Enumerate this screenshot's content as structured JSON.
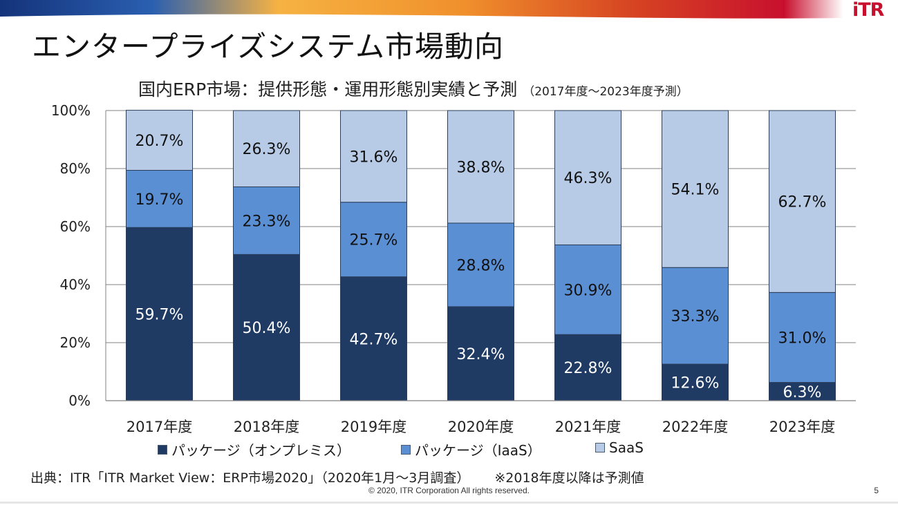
{
  "brand": {
    "logo_text": "iTR"
  },
  "slide": {
    "title": "エンタープライズシステム市場動向",
    "source": "出典：ITR「ITR Market View：ERP市場2020」（2020年1月～3月調査）",
    "note": "※2018年度以降は予測値",
    "copyright": "© 2020, ITR Corporation  All rights reserved.",
    "page_number": "5"
  },
  "colors": {
    "onpremise": "#1f3b64",
    "iaas": "#5b8fd4",
    "saas": "#b7cbe6",
    "banner_blue": "#1e4f9c",
    "banner_orange": "#f2a33a",
    "banner_red": "#c8102e"
  },
  "chart_data": {
    "type": "bar",
    "stacked": true,
    "title": "国内ERP市場：提供形態・運用形態別実績と予測",
    "subtitle": "（2017年度～2023年度予測）",
    "categories": [
      "2017年度",
      "2018年度",
      "2019年度",
      "2020年度",
      "2021年度",
      "2022年度",
      "2023年度"
    ],
    "series": [
      {
        "name": "パッケージ（オンプレミス）",
        "values": [
          59.7,
          50.4,
          42.7,
          32.4,
          22.8,
          12.6,
          6.3
        ],
        "labels": [
          "59.7%",
          "50.4%",
          "42.7%",
          "32.4%",
          "22.8%",
          "12.6%",
          "6.3%"
        ]
      },
      {
        "name": "パッケージ（IaaS）",
        "values": [
          19.7,
          23.3,
          25.7,
          28.8,
          30.9,
          33.3,
          31.0
        ],
        "labels": [
          "19.7%",
          "23.3%",
          "25.7%",
          "28.8%",
          "30.9%",
          "33.3%",
          "31.0%"
        ]
      },
      {
        "name": "SaaS",
        "values": [
          20.7,
          26.3,
          31.6,
          38.8,
          46.3,
          54.1,
          62.7
        ],
        "labels": [
          "20.7%",
          "26.3%",
          "31.6%",
          "38.8%",
          "46.3%",
          "54.1%",
          "62.7%"
        ]
      }
    ],
    "yticks": [
      "0%",
      "20%",
      "40%",
      "60%",
      "80%",
      "100%"
    ],
    "ylim": [
      0,
      100
    ],
    "grid": true,
    "legend": "bottom"
  }
}
